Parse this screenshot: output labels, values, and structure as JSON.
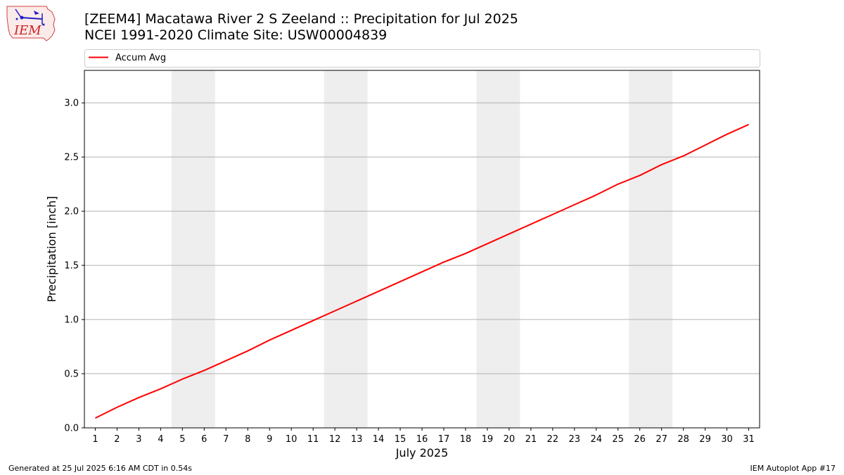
{
  "logo": {
    "text": "IEM"
  },
  "title_line1": "[ZEEM4] Macatawa River 2 S Zeeland :: Precipitation for Jul 2025",
  "title_line2": "NCEI 1991-2020 Climate Site: USW00004839",
  "footer_left": "Generated at 25 Jul 2025 6:16 AM CDT in 0.54s",
  "footer_right": "IEM Autoplot App #17",
  "chart_data": {
    "type": "line",
    "xlabel": "July 2025",
    "ylabel": "Precipitation [inch]",
    "x": [
      1,
      2,
      3,
      4,
      5,
      6,
      7,
      8,
      9,
      10,
      11,
      12,
      13,
      14,
      15,
      16,
      17,
      18,
      19,
      20,
      21,
      22,
      23,
      24,
      25,
      26,
      27,
      28,
      29,
      30,
      31
    ],
    "xlim": [
      0.5,
      31.5
    ],
    "ylim": [
      0,
      3.3
    ],
    "yticks": [
      0.0,
      0.5,
      1.0,
      1.5,
      2.0,
      2.5,
      3.0
    ],
    "ytick_labels": [
      "0.0",
      "0.5",
      "1.0",
      "1.5",
      "2.0",
      "2.5",
      "3.0"
    ],
    "grid": "y",
    "weekend_bands": [
      [
        4.5,
        6.5
      ],
      [
        11.5,
        13.5
      ],
      [
        18.5,
        20.5
      ],
      [
        25.5,
        27.5
      ]
    ],
    "legend_position": "top",
    "series": [
      {
        "name": "Accum Avg",
        "color": "#ff0000",
        "values": [
          0.09,
          0.19,
          0.28,
          0.36,
          0.45,
          0.53,
          0.62,
          0.71,
          0.81,
          0.9,
          0.99,
          1.08,
          1.17,
          1.26,
          1.35,
          1.44,
          1.53,
          1.61,
          1.7,
          1.79,
          1.88,
          1.97,
          2.06,
          2.15,
          2.25,
          2.33,
          2.43,
          2.51,
          2.61,
          2.71,
          2.8
        ]
      }
    ]
  }
}
